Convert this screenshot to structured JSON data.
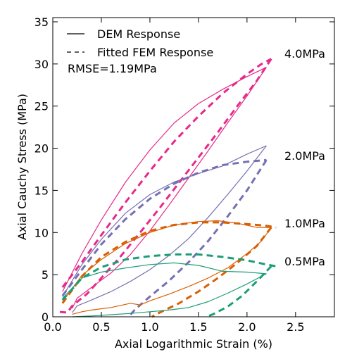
{
  "chart_data": {
    "type": "line",
    "xlabel": "Axial Logarithmic Strain (%)",
    "ylabel": "Axial Cauchy Stress (MPa)",
    "xlim": [
      0.0,
      2.9
    ],
    "ylim": [
      0,
      35.5
    ],
    "xticks": [
      0.0,
      0.5,
      1.0,
      1.5,
      2.0,
      2.5
    ],
    "xtick_labels": [
      "0.0",
      "0.5",
      "1.0",
      "1.5",
      "2.0",
      "2.5"
    ],
    "yticks": [
      0,
      5,
      10,
      15,
      20,
      25,
      30,
      35
    ],
    "ytick_labels": [
      "0",
      "5",
      "10",
      "15",
      "20",
      "25",
      "30",
      "35"
    ],
    "grid": false,
    "legend": {
      "placement": "top-left",
      "entries": [
        {
          "label": "DEM Response",
          "style": "solid"
        },
        {
          "label": "Fitted FEM Response",
          "style": "dashed"
        }
      ]
    },
    "annotations": {
      "rmse": "RMSE=1.19MPa",
      "pressure_labels": [
        {
          "text": "4.0MPa",
          "y": 31.2
        },
        {
          "text": "2.0MPa",
          "y": 19.0
        },
        {
          "text": "1.0MPa",
          "y": 11.0
        },
        {
          "text": "0.5MPa",
          "y": 6.5
        }
      ]
    },
    "series": [
      {
        "group": "4.0MPa",
        "style": "solid",
        "color": "#e7298a",
        "loading": [
          [
            0.1,
            3.0
          ],
          [
            0.3,
            7.5
          ],
          [
            0.5,
            11.5
          ],
          [
            0.75,
            16.0
          ],
          [
            1.0,
            19.8
          ],
          [
            1.25,
            23.0
          ],
          [
            1.5,
            25.3
          ],
          [
            1.75,
            27.0
          ],
          [
            2.0,
            28.5
          ],
          [
            2.2,
            29.6
          ]
        ],
        "unloading": [
          [
            2.2,
            29.6
          ],
          [
            2.0,
            26.2
          ],
          [
            1.8,
            23.0
          ],
          [
            1.6,
            19.7
          ],
          [
            1.4,
            16.5
          ],
          [
            1.2,
            13.3
          ],
          [
            1.0,
            10.2
          ],
          [
            0.8,
            7.4
          ],
          [
            0.6,
            5.2
          ],
          [
            0.4,
            3.5
          ],
          [
            0.25,
            2.2
          ],
          [
            0.2,
            1.0
          ]
        ]
      },
      {
        "group": "4.0MPa",
        "style": "dashed",
        "color": "#e7298a",
        "loading": [
          [
            0.1,
            3.5
          ],
          [
            0.3,
            6.5
          ],
          [
            0.5,
            9.7
          ],
          [
            0.75,
            13.6
          ],
          [
            1.0,
            17.3
          ],
          [
            1.25,
            20.8
          ],
          [
            1.5,
            23.8
          ],
          [
            1.75,
            26.5
          ],
          [
            2.0,
            28.8
          ],
          [
            2.15,
            30.0
          ],
          [
            2.25,
            30.6
          ]
        ],
        "unloading": [
          [
            2.25,
            30.6
          ],
          [
            2.1,
            28.0
          ],
          [
            1.9,
            25.0
          ],
          [
            1.7,
            21.9
          ],
          [
            1.5,
            18.9
          ],
          [
            1.3,
            15.9
          ],
          [
            1.1,
            12.9
          ],
          [
            0.9,
            10.0
          ],
          [
            0.7,
            7.2
          ],
          [
            0.5,
            4.6
          ],
          [
            0.35,
            2.7
          ],
          [
            0.2,
            1.3
          ],
          [
            0.15,
            0.5
          ],
          [
            0.05,
            0.6
          ]
        ]
      },
      {
        "group": "2.0MPa",
        "style": "solid",
        "color": "#7570b3",
        "loading": [
          [
            0.1,
            2.4
          ],
          [
            0.3,
            6.2
          ],
          [
            0.5,
            9.2
          ],
          [
            0.75,
            12.3
          ],
          [
            1.0,
            14.5
          ],
          [
            1.25,
            16.0
          ],
          [
            1.5,
            17.0
          ],
          [
            1.75,
            17.9
          ],
          [
            2.0,
            19.3
          ],
          [
            2.2,
            20.3
          ]
        ],
        "unloading": [
          [
            2.2,
            20.3
          ],
          [
            2.0,
            17.3
          ],
          [
            1.8,
            14.5
          ],
          [
            1.6,
            11.8
          ],
          [
            1.4,
            9.3
          ],
          [
            1.2,
            7.3
          ],
          [
            1.0,
            5.6
          ],
          [
            0.8,
            4.2
          ],
          [
            0.6,
            3.0
          ],
          [
            0.4,
            2.0
          ],
          [
            0.25,
            1.3
          ],
          [
            0.2,
            0.5
          ]
        ]
      },
      {
        "group": "2.0MPa",
        "style": "dashed",
        "color": "#7570b3",
        "loading": [
          [
            0.1,
            2.5
          ],
          [
            0.3,
            5.6
          ],
          [
            0.5,
            8.6
          ],
          [
            0.75,
            11.6
          ],
          [
            1.0,
            14.0
          ],
          [
            1.25,
            15.8
          ],
          [
            1.5,
            17.1
          ],
          [
            1.75,
            18.0
          ],
          [
            2.0,
            18.4
          ],
          [
            2.2,
            18.6
          ]
        ],
        "unloading": [
          [
            2.2,
            18.6
          ],
          [
            2.0,
            15.0
          ],
          [
            1.8,
            11.9
          ],
          [
            1.6,
            9.0
          ],
          [
            1.4,
            6.5
          ],
          [
            1.2,
            4.3
          ],
          [
            1.0,
            2.4
          ],
          [
            0.85,
            0.9
          ],
          [
            0.78,
            0.0
          ]
        ]
      },
      {
        "group": "1.0MPa",
        "style": "solid",
        "color": "#d95f02",
        "loading": [
          [
            0.1,
            1.8
          ],
          [
            0.3,
            4.9
          ],
          [
            0.5,
            6.8
          ],
          [
            0.75,
            8.7
          ],
          [
            1.0,
            10.0
          ],
          [
            1.25,
            10.9
          ],
          [
            1.5,
            11.3
          ],
          [
            1.7,
            11.4
          ],
          [
            1.9,
            11.1
          ],
          [
            2.1,
            10.6
          ],
          [
            2.25,
            10.6
          ]
        ],
        "unloading": [
          [
            2.25,
            10.6
          ],
          [
            2.15,
            9.0
          ],
          [
            2.0,
            7.5
          ],
          [
            1.8,
            5.8
          ],
          [
            1.6,
            4.6
          ],
          [
            1.4,
            3.6
          ],
          [
            1.2,
            2.7
          ],
          [
            1.0,
            1.9
          ],
          [
            0.9,
            1.4
          ],
          [
            0.8,
            1.6
          ],
          [
            0.6,
            1.1
          ],
          [
            0.4,
            0.8
          ],
          [
            0.3,
            0.6
          ],
          [
            0.2,
            0.3
          ]
        ]
      },
      {
        "group": "1.0MPa",
        "style": "dashed",
        "color": "#d95f02",
        "loading": [
          [
            0.1,
            1.6
          ],
          [
            0.3,
            4.8
          ],
          [
            0.5,
            7.1
          ],
          [
            0.75,
            8.9
          ],
          [
            1.0,
            10.2
          ],
          [
            1.25,
            10.9
          ],
          [
            1.5,
            11.2
          ],
          [
            1.75,
            11.2
          ],
          [
            2.0,
            11.0
          ],
          [
            2.2,
            10.8
          ],
          [
            2.3,
            10.6
          ]
        ],
        "unloading": [
          [
            2.25,
            10.6
          ],
          [
            2.1,
            8.4
          ],
          [
            1.9,
            6.4
          ],
          [
            1.7,
            4.6
          ],
          [
            1.5,
            3.0
          ],
          [
            1.3,
            1.6
          ],
          [
            1.1,
            0.5
          ],
          [
            1.02,
            0.0
          ]
        ]
      },
      {
        "group": "0.5MPa",
        "style": "solid",
        "color": "#1b9e77",
        "loading": [
          [
            0.1,
            2.2
          ],
          [
            0.3,
            4.6
          ],
          [
            0.5,
            5.3
          ],
          [
            0.75,
            5.8
          ],
          [
            1.0,
            6.2
          ],
          [
            1.25,
            6.4
          ],
          [
            1.5,
            6.1
          ],
          [
            1.75,
            5.4
          ],
          [
            2.0,
            5.3
          ],
          [
            2.2,
            5.1
          ]
        ],
        "unloading": [
          [
            2.2,
            5.1
          ],
          [
            2.0,
            3.9
          ],
          [
            1.8,
            2.8
          ],
          [
            1.6,
            1.8
          ],
          [
            1.4,
            1.1
          ],
          [
            1.2,
            0.8
          ],
          [
            1.0,
            0.6
          ],
          [
            0.8,
            0.4
          ],
          [
            0.6,
            0.25
          ],
          [
            0.4,
            0.1
          ],
          [
            0.2,
            0.0
          ]
        ]
      },
      {
        "group": "0.5MPa",
        "style": "dashed",
        "color": "#1b9e77",
        "loading": [
          [
            0.1,
            2.0
          ],
          [
            0.3,
            4.6
          ],
          [
            0.5,
            5.9
          ],
          [
            0.75,
            6.8
          ],
          [
            1.0,
            7.2
          ],
          [
            1.25,
            7.4
          ],
          [
            1.5,
            7.4
          ],
          [
            1.75,
            7.1
          ],
          [
            2.0,
            6.7
          ],
          [
            2.2,
            6.2
          ],
          [
            2.3,
            6.0
          ]
        ],
        "unloading": [
          [
            2.25,
            6.0
          ],
          [
            2.1,
            4.2
          ],
          [
            1.95,
            2.5
          ],
          [
            1.8,
            1.2
          ],
          [
            1.65,
            0.3
          ],
          [
            1.58,
            0.0
          ]
        ]
      }
    ]
  }
}
